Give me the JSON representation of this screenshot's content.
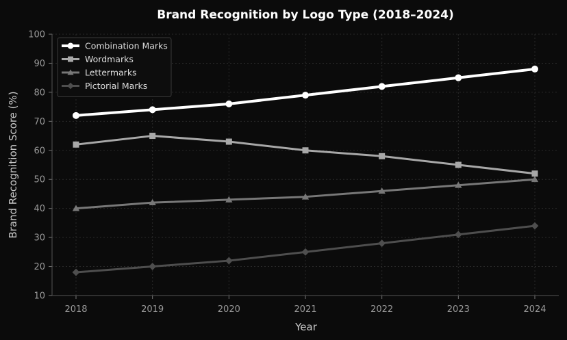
{
  "chart_data": {
    "type": "line",
    "title": "Brand Recognition by Logo Type (2018–2024)",
    "xlabel": "Year",
    "ylabel": "Brand Recognition Score (%)",
    "x": [
      2018,
      2019,
      2020,
      2021,
      2022,
      2023,
      2024
    ],
    "x_tick_labels": [
      "2018",
      "2019",
      "2020",
      "2021",
      "2022",
      "2023",
      "2024"
    ],
    "ylim": [
      10,
      100
    ],
    "y_ticks": [
      10,
      20,
      30,
      40,
      50,
      60,
      70,
      80,
      90,
      100
    ],
    "y_tick_labels": [
      "10",
      "20",
      "30",
      "40",
      "50",
      "60",
      "70",
      "80",
      "90",
      "100"
    ],
    "grid": true,
    "legend_position": "top-left",
    "series": [
      {
        "name": "Combination Marks",
        "values": [
          72,
          74,
          76,
          79,
          82,
          85,
          88
        ],
        "color": "#ffffff",
        "marker": "circle"
      },
      {
        "name": "Wordmarks",
        "values": [
          62,
          65,
          63,
          60,
          58,
          55,
          52
        ],
        "color": "#a8a8a8",
        "marker": "square"
      },
      {
        "name": "Lettermarks",
        "values": [
          40,
          42,
          43,
          44,
          46,
          48,
          50
        ],
        "color": "#787878",
        "marker": "triangle"
      },
      {
        "name": "Pictorial Marks",
        "values": [
          18,
          20,
          22,
          25,
          28,
          31,
          34
        ],
        "color": "#4e4e4e",
        "marker": "diamond"
      }
    ]
  }
}
